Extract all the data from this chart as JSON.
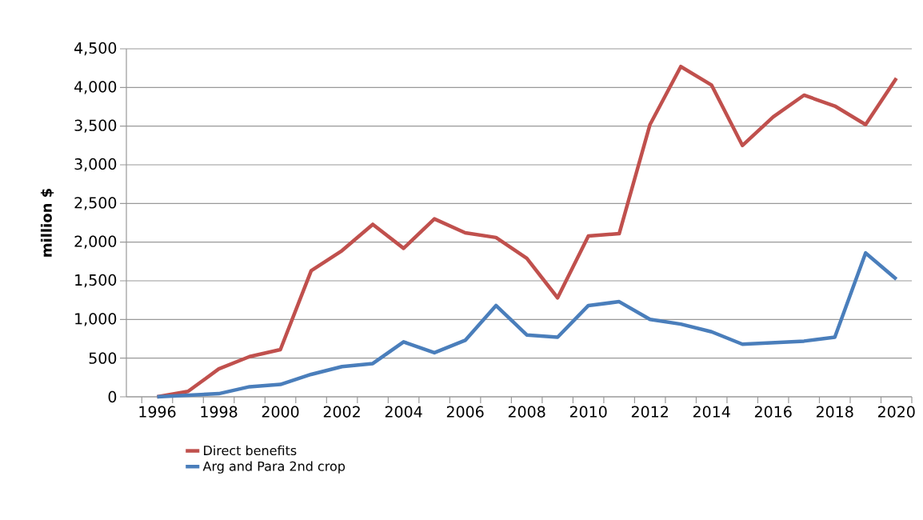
{
  "chart_data": {
    "type": "line",
    "ylabel": "million $",
    "categories": [
      "1996",
      null,
      "1998",
      null,
      "2000",
      null,
      "2002",
      null,
      "2004",
      null,
      "2006",
      null,
      "2008",
      null,
      "2010",
      null,
      "2012",
      null,
      "2014",
      null,
      "2016",
      null,
      "2018",
      null,
      "2020"
    ],
    "series": [
      {
        "name": "Direct benefits",
        "color": "#c0504d",
        "values": [
          0,
          70,
          360,
          520,
          610,
          1630,
          1890,
          2230,
          1920,
          2300,
          2120,
          2060,
          1790,
          1280,
          2080,
          2110,
          3520,
          4270,
          4030,
          3250,
          3620,
          3900,
          3760,
          3520,
          4120
        ]
      },
      {
        "name": "Arg and Para 2nd crop",
        "color": "#4a7ebb",
        "values": [
          0,
          20,
          40,
          130,
          160,
          290,
          390,
          430,
          710,
          570,
          730,
          1180,
          800,
          770,
          1180,
          1230,
          1000,
          940,
          840,
          680,
          700,
          720,
          770,
          1860,
          1520
        ]
      }
    ],
    "ylim": [
      0,
      4500
    ],
    "yticks": [
      {
        "value": 0,
        "label": "0"
      },
      {
        "value": 500,
        "label": "500"
      },
      {
        "value": 1000,
        "label": "1,000"
      },
      {
        "value": 1500,
        "label": "1,500"
      },
      {
        "value": 2000,
        "label": "2,000"
      },
      {
        "value": 2500,
        "label": "2,500"
      },
      {
        "value": 3000,
        "label": "3,000"
      },
      {
        "value": 3500,
        "label": "3,500"
      },
      {
        "value": 4000,
        "label": "4,000"
      },
      {
        "value": 4500,
        "label": "4,500"
      }
    ],
    "grid": "y",
    "legend": "bottom left",
    "marker": "none",
    "line_style": "solid"
  }
}
